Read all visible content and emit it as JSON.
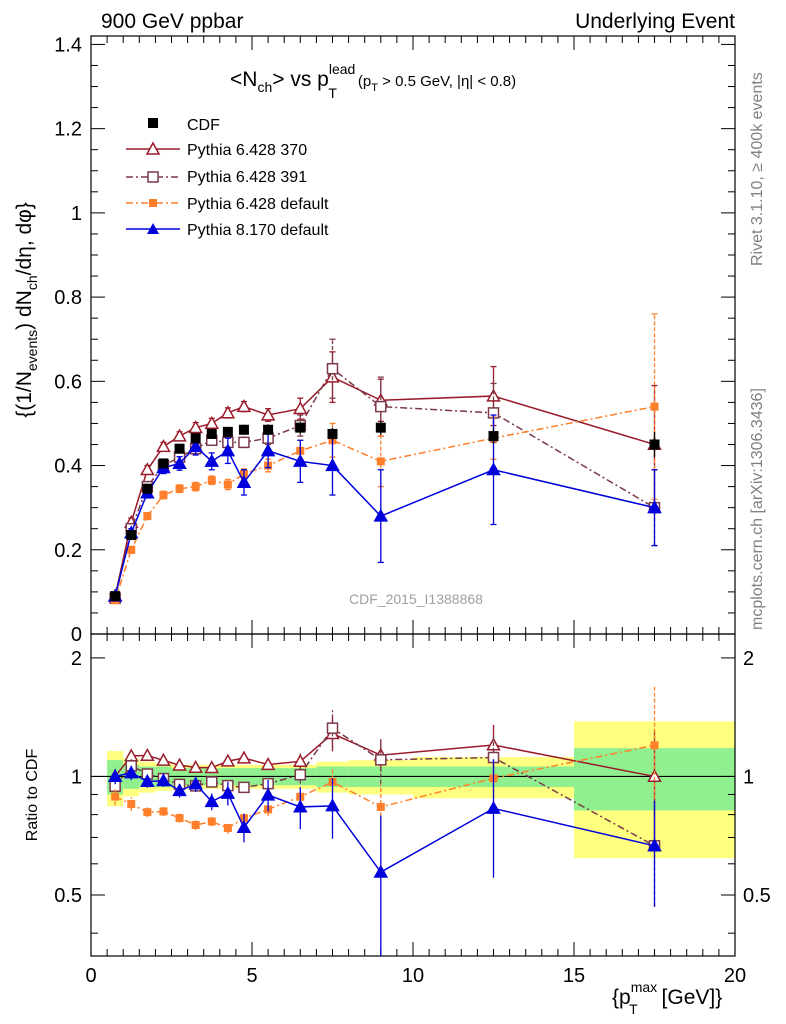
{
  "header": {
    "left": "900 GeV ppbar",
    "right": "Underlying Event"
  },
  "plot_title": {
    "main": "<N",
    "main_sub": "ch",
    "vs": "> vs p",
    "sup": "lead",
    "sub": "T",
    "cuts_open": "(p",
    "cuts_sub": "T",
    "cuts_rest": " > 0.5 GeV, |η| < 0.8)"
  },
  "watermark": "CDF_2015_I1388868",
  "side_labels": {
    "rivet": "Rivet 3.1.10, ≥ 400k events",
    "mcplots": "mcplots.cern.ch [arXiv:1306.3436]"
  },
  "y_axis_label": {
    "p1": "{(1/N",
    "s1": "events",
    "p2": ") dN",
    "s2": "ch",
    "p3": "/dη, dφ}"
  },
  "ratio_axis_label": "Ratio to CDF",
  "x_axis_label": {
    "p1": "{p",
    "sup": "max",
    "sub": "T",
    "p2": " [GeV]}"
  },
  "legend": [
    {
      "label": "CDF"
    },
    {
      "label": "Pythia 6.428 370"
    },
    {
      "label": "Pythia 6.428 391"
    },
    {
      "label": "Pythia 6.428 default"
    },
    {
      "label": "Pythia 8.170 default"
    }
  ],
  "chart_data": {
    "type": "scatter",
    "x_range": [
      0,
      20
    ],
    "main_y_range": [
      0,
      1.42
    ],
    "ratio_y_range": [
      0.35,
      2.3
    ],
    "x_ticks": [
      0,
      5,
      10,
      15,
      20
    ],
    "main_y_ticks": [
      0,
      0.2,
      0.4,
      0.6,
      0.8,
      1,
      1.2,
      1.4
    ],
    "ratio_y_ticks": [
      0.5,
      1,
      2
    ],
    "bins": [
      0.5,
      1.0,
      1.5,
      2.0,
      2.5,
      3.0,
      3.5,
      4.0,
      4.5,
      5.0,
      6.0,
      7.0,
      8.0,
      10.0,
      15.0,
      20.0
    ],
    "x": [
      0.75,
      1.25,
      1.75,
      2.25,
      2.75,
      3.25,
      3.75,
      4.25,
      4.75,
      5.5,
      6.5,
      7.5,
      9.0,
      12.5,
      17.5
    ],
    "cdf": {
      "name": "CDF",
      "color": "#000000",
      "values": [
        0.09,
        0.235,
        0.345,
        0.405,
        0.44,
        0.465,
        0.475,
        0.48,
        0.485,
        0.485,
        0.49,
        0.475,
        0.49,
        0.47,
        0.45
      ],
      "errors": [
        0.004,
        0.006,
        0.008,
        0.009,
        0.01,
        0.01,
        0.011,
        0.012,
        0.012,
        0.013,
        0.014,
        0.015,
        0.016,
        0.018,
        0.03
      ],
      "band_inner": [
        0.1,
        0.07,
        0.06,
        0.06,
        0.05,
        0.05,
        0.05,
        0.05,
        0.05,
        0.05,
        0.05,
        0.06,
        0.06,
        0.06,
        0.18
      ],
      "band_outer": [
        0.16,
        0.11,
        0.09,
        0.08,
        0.07,
        0.07,
        0.07,
        0.07,
        0.07,
        0.07,
        0.07,
        0.09,
        0.1,
        0.12,
        0.38
      ]
    },
    "series": [
      {
        "name": "Pythia 6.428 370",
        "color": "#9a1b2b",
        "marker": "triangle-open",
        "dash": "",
        "values": [
          0.09,
          0.265,
          0.39,
          0.445,
          0.47,
          0.49,
          0.5,
          0.525,
          0.54,
          0.52,
          0.535,
          0.61,
          0.555,
          0.565,
          0.45
        ],
        "errors": [
          0.004,
          0.01,
          0.01,
          0.01,
          0.01,
          0.012,
          0.012,
          0.012,
          0.012,
          0.015,
          0.025,
          0.06,
          0.05,
          0.07,
          0.14
        ]
      },
      {
        "name": "Pythia 6.428 391",
        "color": "#7a3a4a",
        "marker": "square-open",
        "dash": "7,3,2,3",
        "values": [
          0.085,
          0.25,
          0.35,
          0.4,
          0.42,
          0.44,
          0.46,
          0.455,
          0.455,
          0.465,
          0.495,
          0.63,
          0.54,
          0.525,
          0.3
        ],
        "errors": [
          0.004,
          0.01,
          0.01,
          0.01,
          0.01,
          0.012,
          0.012,
          0.012,
          0.012,
          0.015,
          0.025,
          0.07,
          0.07,
          0.07,
          0.09
        ]
      },
      {
        "name": "Pythia 6.428 default",
        "color": "#ff7f2a",
        "marker": "square-filled",
        "dash": "7,3,2,3",
        "values": [
          0.08,
          0.2,
          0.28,
          0.33,
          0.345,
          0.35,
          0.365,
          0.355,
          0.38,
          0.4,
          0.435,
          0.46,
          0.41,
          0.465,
          0.54
        ],
        "errors": [
          0.004,
          0.008,
          0.008,
          0.009,
          0.009,
          0.01,
          0.01,
          0.012,
          0.012,
          0.015,
          0.025,
          0.04,
          0.06,
          0.05,
          0.22
        ]
      },
      {
        "name": "Pythia 8.170 default",
        "color": "#0000dd",
        "marker": "triangle-filled",
        "dash": "",
        "values": [
          0.09,
          0.24,
          0.335,
          0.395,
          0.405,
          0.445,
          0.41,
          0.435,
          0.36,
          0.435,
          0.41,
          0.4,
          0.28,
          0.39,
          0.3
        ],
        "errors": [
          0.004,
          0.01,
          0.012,
          0.014,
          0.016,
          0.02,
          0.02,
          0.03,
          0.03,
          0.04,
          0.05,
          0.07,
          0.11,
          0.13,
          0.09
        ]
      }
    ]
  }
}
